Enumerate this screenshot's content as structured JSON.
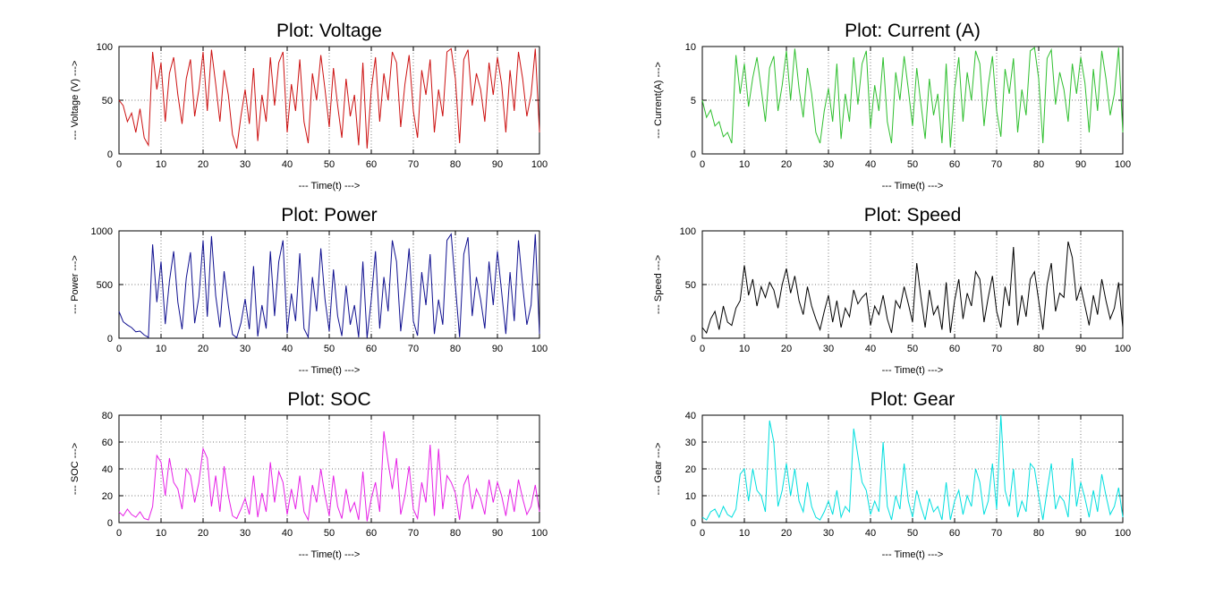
{
  "figure": {
    "background": "#ffffff"
  },
  "chart_data": [
    {
      "type": "line",
      "title": "Plot: Voltage",
      "xlabel": "--- Time(t) --->",
      "ylabel": "--- Voltage (V) --->",
      "color": "#cc1111",
      "xlim": [
        0,
        100
      ],
      "ylim": [
        0,
        100
      ],
      "xticks": [
        0,
        10,
        20,
        30,
        40,
        50,
        60,
        70,
        80,
        90,
        100
      ],
      "yticks": [
        0,
        50,
        100
      ],
      "grid": true,
      "values": [
        50,
        45,
        30,
        38,
        20,
        42,
        15,
        8,
        95,
        60,
        85,
        30,
        75,
        90,
        55,
        28,
        70,
        88,
        35,
        60,
        95,
        40,
        97,
        65,
        30,
        78,
        55,
        18,
        5,
        35,
        60,
        28,
        80,
        12,
        55,
        30,
        90,
        45,
        85,
        95,
        20,
        65,
        40,
        88,
        30,
        10,
        75,
        50,
        92,
        60,
        25,
        80,
        45,
        15,
        70,
        35,
        55,
        8,
        85,
        5,
        60,
        90,
        30,
        75,
        50,
        95,
        85,
        25,
        65,
        92,
        40,
        15,
        78,
        55,
        88,
        20,
        60,
        35,
        95,
        98,
        70,
        10,
        88,
        97,
        45,
        75,
        60,
        30,
        85,
        55,
        90,
        65,
        20,
        78,
        40,
        95,
        70,
        35,
        55,
        98,
        20
      ]
    },
    {
      "type": "line",
      "title": "Plot: Current (A)",
      "xlabel": "--- Time(t) --->",
      "ylabel": "--- Current(A) --->",
      "color": "#2fbf2f",
      "xlim": [
        0,
        100
      ],
      "ylim": [
        0,
        10
      ],
      "xticks": [
        0,
        10,
        20,
        30,
        40,
        50,
        60,
        70,
        80,
        90,
        100
      ],
      "yticks": [
        0,
        5,
        10
      ],
      "grid": true,
      "values": [
        5,
        3.4,
        4.1,
        2.6,
        3,
        1.6,
        2,
        1,
        9.2,
        5.6,
        8.4,
        4.4,
        7.1,
        9,
        6.1,
        3,
        8,
        9.1,
        4,
        6.4,
        9.6,
        5,
        9.8,
        6.1,
        3.4,
        8,
        5.6,
        2,
        1,
        4,
        6.1,
        3,
        8.4,
        1.4,
        5.6,
        3,
        9,
        4.6,
        8.4,
        9.6,
        2.4,
        6.4,
        4,
        9,
        3,
        1,
        7.6,
        5,
        9.1,
        6,
        2.6,
        8,
        4.6,
        1.4,
        7,
        3.6,
        5.6,
        1,
        8.4,
        0.6,
        6,
        9,
        3,
        7.6,
        5,
        9.6,
        8.4,
        2.6,
        6.4,
        9.1,
        4,
        1.6,
        7.9,
        5.6,
        8.9,
        2,
        6,
        3.6,
        9.6,
        9.9,
        7,
        1,
        8.9,
        9.7,
        4.6,
        7.6,
        6,
        3,
        8.4,
        5.6,
        9,
        6.6,
        2,
        7.9,
        4,
        9.6,
        7,
        3.6,
        5.6,
        9.9,
        2
      ]
    },
    {
      "type": "line",
      "title": "Plot: Power",
      "xlabel": "--- Time(t) --->",
      "ylabel": "--- Power --->",
      "color": "#101090",
      "xlim": [
        0,
        100
      ],
      "ylim": [
        0,
        1000
      ],
      "xticks": [
        0,
        10,
        20,
        30,
        40,
        50,
        60,
        70,
        80,
        90,
        100
      ],
      "yticks": [
        0,
        500,
        1000
      ],
      "grid": true,
      "values": [
        250,
        153,
        123,
        99,
        60,
        67,
        30,
        8,
        874,
        336,
        714,
        132,
        533,
        810,
        336,
        84,
        560,
        801,
        140,
        384,
        912,
        200,
        951,
        397,
        102,
        624,
        308,
        36,
        5,
        140,
        366,
        84,
        672,
        17,
        308,
        90,
        810,
        207,
        714,
        912,
        48,
        416,
        160,
        792,
        90,
        10,
        570,
        250,
        837,
        360,
        65,
        640,
        207,
        21,
        490,
        126,
        308,
        8,
        714,
        3,
        360,
        810,
        90,
        570,
        250,
        912,
        714,
        65,
        416,
        837,
        160,
        24,
        616,
        308,
        783,
        40,
        360,
        126,
        912,
        970,
        490,
        10,
        783,
        941,
        207,
        570,
        360,
        90,
        714,
        308,
        810,
        429,
        40,
        616,
        160,
        912,
        490,
        126,
        308,
        970,
        40
      ]
    },
    {
      "type": "line",
      "title": "Plot: Speed",
      "xlabel": "--- Time(t) --->",
      "ylabel": "--- Speed --->",
      "color": "#000000",
      "xlim": [
        0,
        100
      ],
      "ylim": [
        0,
        100
      ],
      "xticks": [
        0,
        10,
        20,
        30,
        40,
        50,
        60,
        70,
        80,
        90,
        100
      ],
      "yticks": [
        0,
        50,
        100
      ],
      "grid": true,
      "values": [
        10,
        5,
        18,
        25,
        8,
        30,
        15,
        12,
        28,
        35,
        68,
        40,
        55,
        30,
        48,
        38,
        52,
        45,
        28,
        50,
        65,
        42,
        58,
        35,
        22,
        48,
        30,
        18,
        8,
        25,
        40,
        15,
        35,
        10,
        28,
        20,
        45,
        32,
        38,
        42,
        12,
        30,
        22,
        40,
        18,
        5,
        35,
        28,
        48,
        32,
        15,
        70,
        38,
        10,
        45,
        22,
        30,
        8,
        52,
        5,
        35,
        55,
        18,
        42,
        30,
        62,
        55,
        15,
        38,
        58,
        25,
        10,
        48,
        30,
        85,
        12,
        40,
        20,
        55,
        62,
        35,
        8,
        50,
        70,
        25,
        42,
        38,
        90,
        75,
        35,
        48,
        30,
        12,
        40,
        22,
        55,
        35,
        18,
        28,
        52,
        10
      ]
    },
    {
      "type": "line",
      "title": "Plot: SOC",
      "xlabel": "--- Time(t) --->",
      "ylabel": "--- SOC --->",
      "color": "#e620e6",
      "xlim": [
        0,
        100
      ],
      "ylim": [
        0,
        80
      ],
      "xticks": [
        0,
        10,
        20,
        30,
        40,
        50,
        60,
        70,
        80,
        90,
        100
      ],
      "yticks": [
        0,
        20,
        40,
        60,
        80
      ],
      "grid": true,
      "values": [
        8,
        5,
        10,
        6,
        4,
        8,
        3,
        2,
        12,
        50,
        45,
        20,
        48,
        30,
        25,
        10,
        40,
        35,
        15,
        30,
        55,
        48,
        12,
        35,
        8,
        42,
        20,
        5,
        3,
        10,
        18,
        6,
        35,
        4,
        22,
        8,
        45,
        15,
        38,
        30,
        6,
        25,
        10,
        35,
        8,
        2,
        28,
        15,
        40,
        20,
        5,
        35,
        12,
        3,
        25,
        8,
        15,
        2,
        38,
        1,
        18,
        30,
        8,
        68,
        45,
        25,
        48,
        6,
        20,
        42,
        10,
        3,
        30,
        15,
        58,
        5,
        55,
        10,
        35,
        30,
        22,
        2,
        28,
        35,
        10,
        25,
        18,
        6,
        32,
        15,
        30,
        20,
        5,
        25,
        8,
        32,
        18,
        6,
        12,
        28,
        8
      ]
    },
    {
      "type": "line",
      "title": "Plot: Gear",
      "xlabel": "--- Time(t) --->",
      "ylabel": "--- Gear --->",
      "color": "#00dede",
      "xlim": [
        0,
        100
      ],
      "ylim": [
        0,
        40
      ],
      "xticks": [
        0,
        10,
        20,
        30,
        40,
        50,
        60,
        70,
        80,
        90,
        100
      ],
      "yticks": [
        0,
        10,
        20,
        30,
        40
      ],
      "grid": true,
      "values": [
        2,
        1,
        4,
        5,
        2,
        6,
        3,
        2,
        5,
        18,
        20,
        8,
        20,
        12,
        10,
        4,
        38,
        30,
        6,
        12,
        22,
        10,
        20,
        8,
        4,
        15,
        6,
        2,
        1,
        4,
        8,
        3,
        12,
        2,
        6,
        4,
        35,
        25,
        15,
        12,
        3,
        8,
        4,
        30,
        6,
        1,
        10,
        5,
        22,
        8,
        2,
        12,
        6,
        1,
        9,
        4,
        6,
        1,
        15,
        1,
        8,
        12,
        3,
        10,
        6,
        20,
        15,
        3,
        8,
        22,
        5,
        40,
        12,
        6,
        20,
        2,
        8,
        4,
        22,
        20,
        10,
        1,
        12,
        22,
        5,
        10,
        8,
        2,
        24,
        6,
        15,
        9,
        2,
        12,
        4,
        18,
        10,
        3,
        6,
        13,
        2
      ]
    }
  ]
}
